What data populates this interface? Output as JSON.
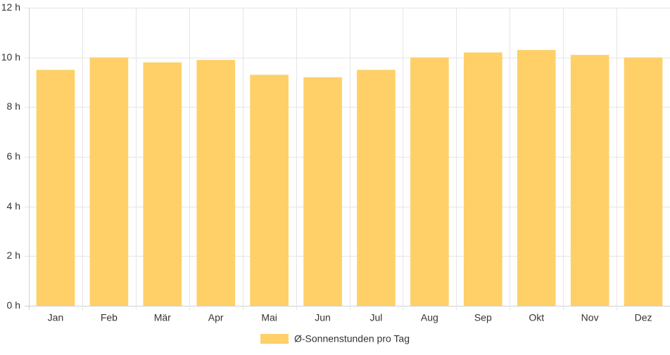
{
  "chart_data": {
    "type": "bar",
    "categories": [
      "Jan",
      "Feb",
      "Mär",
      "Apr",
      "Mai",
      "Jun",
      "Jul",
      "Aug",
      "Sep",
      "Okt",
      "Nov",
      "Dez"
    ],
    "series": [
      {
        "name": "Ø-Sonnenstunden pro Tag",
        "values": [
          9.5,
          10.0,
          9.8,
          9.9,
          9.3,
          9.2,
          9.5,
          10.0,
          10.2,
          10.3,
          10.1,
          10.0
        ]
      }
    ],
    "y_ticks": [
      0,
      2,
      4,
      6,
      8,
      10,
      12
    ],
    "y_tick_labels": [
      "0 h",
      "2 h",
      "4 h",
      "6 h",
      "8 h",
      "10 h",
      "12 h"
    ],
    "ylim": [
      0,
      12
    ],
    "grid": true,
    "legend_position": "bottom-center",
    "colors": {
      "bar": "#fed067",
      "grid": "#e5e5e5",
      "axis": "#d0d0d0",
      "text": "#333333"
    }
  }
}
